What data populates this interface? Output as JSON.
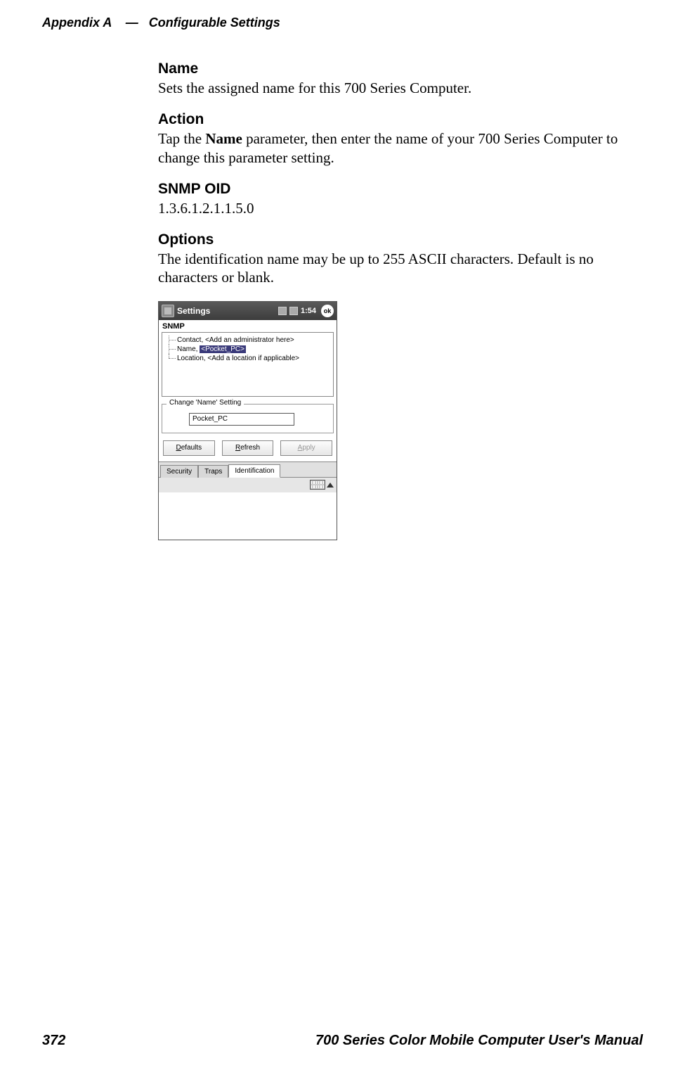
{
  "header": {
    "appendix": "Appendix",
    "letter": "A",
    "dash": "—",
    "title": "Configurable Settings"
  },
  "sections": {
    "name": {
      "heading": "Name",
      "body": "Sets the assigned name for this 700 Series Computer."
    },
    "action": {
      "heading": "Action",
      "body_pre": "Tap the ",
      "body_bold": "Name",
      "body_post": " parameter, then enter the name of your 700 Series Computer to change this parameter setting."
    },
    "snmp": {
      "heading": "SNMP OID",
      "body": "1.3.6.1.2.1.1.5.0"
    },
    "options": {
      "heading": "Options",
      "body": "The identification name may be up to 255 ASCII characters. Default is no characters or blank."
    }
  },
  "device": {
    "title": "Settings",
    "time": "1:54",
    "ok": "ok",
    "app_label": "SNMP",
    "tree": {
      "contact": "Contact, <Add an administrator here>",
      "name_label": "Name, ",
      "name_value": "<Pocket_PC>",
      "location": "Location, <Add a location if applicable>"
    },
    "fieldset": {
      "legend": "Change 'Name' Setting",
      "value": "Pocket_PC"
    },
    "buttons": {
      "defaults_u": "D",
      "defaults_rest": "efaults",
      "refresh_u": "R",
      "refresh_rest": "efresh",
      "apply_u": "A",
      "apply_rest": "pply"
    },
    "tabs": {
      "security": "Security",
      "traps": "Traps",
      "identification": "Identification"
    }
  },
  "footer": {
    "page": "372",
    "manual": "700 Series Color Mobile Computer User's Manual"
  }
}
